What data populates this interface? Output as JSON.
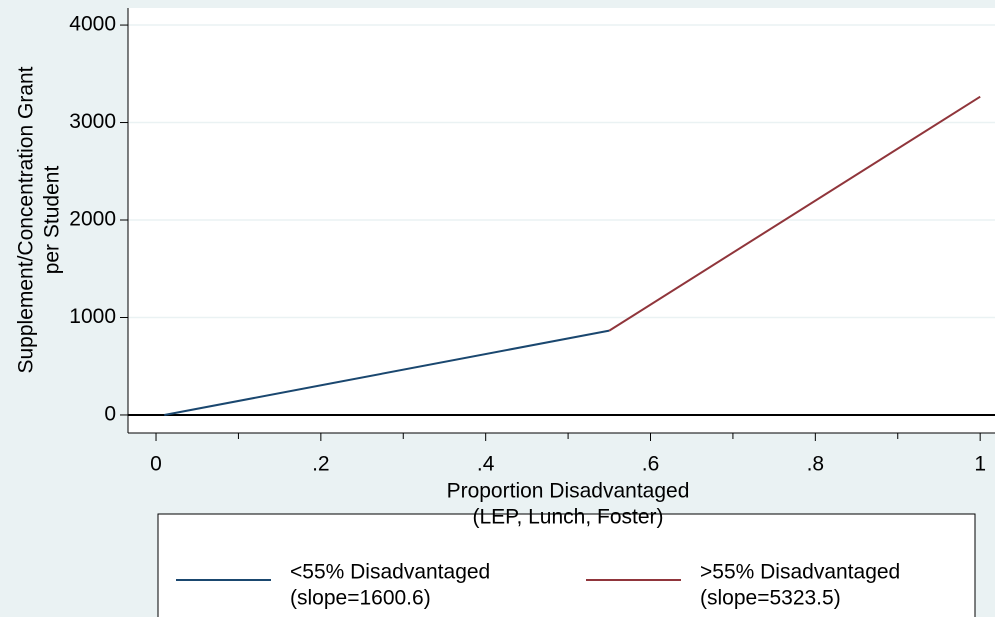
{
  "chart_data": {
    "type": "line",
    "xlabel": [
      "Proportion Disadvantaged",
      "(LEP, Lunch, Foster)"
    ],
    "ylabel": [
      "Supplement/Concentration Grant",
      "per Student"
    ],
    "series": [
      {
        "name": "<55% Disadvantaged",
        "slope_label": "(slope=1600.6)",
        "color": "#1a476f",
        "x": [
          0.01,
          0.55
        ],
        "values": [
          0,
          866
        ]
      },
      {
        "name": ">55% Disadvantaged",
        "slope_label": "(slope=5323.5)",
        "color": "#90353b",
        "x": [
          0.55,
          1
        ],
        "values": [
          866,
          3265
        ]
      }
    ],
    "xlim": [
      -0.034,
      1.018
    ],
    "xticks": [
      0,
      {
        "value": 0.2,
        "label": ".2"
      },
      {
        "value": 0.4,
        "label": ".4"
      },
      {
        "value": 0.6,
        "label": ".6"
      },
      {
        "value": 0.8,
        "label": ".8"
      },
      1
    ],
    "xminorticks": [
      0.1,
      0.3,
      0.5,
      0.7,
      0.9
    ],
    "ylim": [
      -185,
      4175
    ],
    "yticks": [
      0,
      1000,
      2000,
      3000,
      4000
    ],
    "grid": true
  }
}
